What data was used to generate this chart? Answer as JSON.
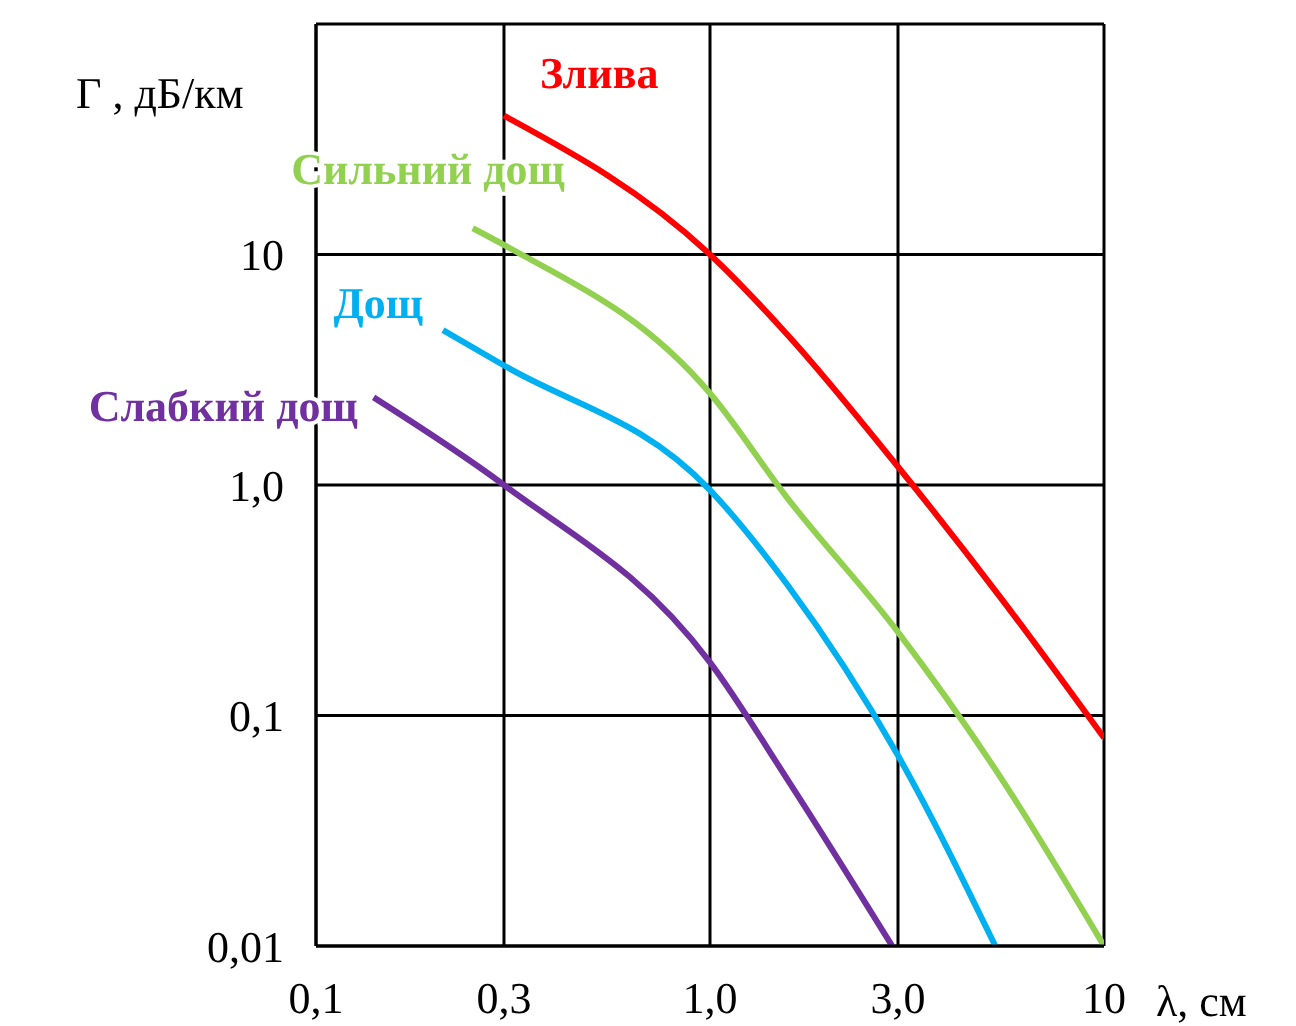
{
  "chart_data": {
    "type": "line",
    "xlabel": "λ, см",
    "ylabel": "Г , дБ/км",
    "log": "xy",
    "grid": true,
    "marker": "none",
    "line_style": "solid",
    "xlim": [
      0.1,
      10
    ],
    "xticks": [
      {
        "value": 0.1,
        "label": "0,1"
      },
      {
        "value": 0.3,
        "label": "0,3"
      },
      {
        "value": 1,
        "label": "1,0"
      },
      {
        "value": 3,
        "label": "3,0"
      },
      {
        "value": 10,
        "label": "10"
      }
    ],
    "ylim": [
      0.01,
      100
    ],
    "yticks": [
      {
        "value": 0.01,
        "label": "0,01"
      },
      {
        "value": 0.1,
        "label": "0,1"
      },
      {
        "value": 1,
        "label": "1,0"
      },
      {
        "value": 10,
        "label": "10"
      }
    ],
    "series": [
      {
        "name": "Злива",
        "color": "#ff0000",
        "x": [
          0.3,
          1,
          1.57,
          3,
          5.5,
          10
        ],
        "values": [
          40,
          10,
          4.5,
          1.2,
          0.32,
          0.08
        ]
      },
      {
        "name": "Сильний дощ",
        "color": "#92d050",
        "x": [
          0.25,
          0.3,
          1,
          1.57,
          3,
          5.5,
          10
        ],
        "values": [
          13,
          11,
          2.5,
          0.88,
          0.23,
          0.053,
          0.01
        ]
      },
      {
        "name": "Дощ",
        "color": "#00b0f0",
        "x": [
          0.21,
          0.3,
          1,
          1.57,
          3,
          5.3
        ],
        "values": [
          4.7,
          3.3,
          0.95,
          0.37,
          0.067,
          0.01
        ]
      },
      {
        "name": "Слабкий дощ",
        "color": "#7030a0",
        "x": [
          0.14,
          0.3,
          1,
          1.57,
          2.9
        ],
        "values": [
          2.4,
          1,
          0.17,
          0.053,
          0.01
        ]
      }
    ]
  }
}
